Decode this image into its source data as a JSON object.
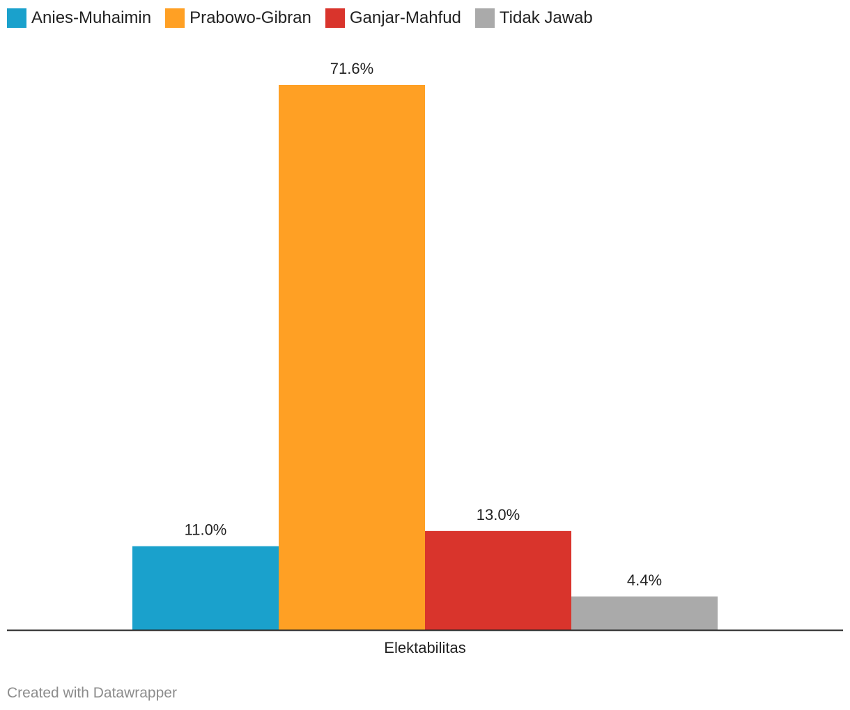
{
  "chart_data": {
    "type": "bar",
    "categories": [
      "Elektabilitas"
    ],
    "series": [
      {
        "name": "Anies-Muhaimin",
        "values": [
          11.0
        ],
        "label": "11.0%",
        "color": "#1aa1cc"
      },
      {
        "name": "Prabowo-Gibran",
        "values": [
          71.6
        ],
        "label": "71.6%",
        "color": "#ffa024"
      },
      {
        "name": "Ganjar-Mahfud",
        "values": [
          13.0
        ],
        "label": "13.0%",
        "color": "#d9342c"
      },
      {
        "name": "Tidak Jawab",
        "values": [
          4.4
        ],
        "label": "4.4%",
        "color": "#aaaaaa"
      }
    ],
    "xlabel": "",
    "ylabel": "",
    "ylim": [
      0,
      71.6
    ],
    "grid": false,
    "legend_position": "top-left"
  },
  "footer": {
    "credit": "Created with Datawrapper"
  }
}
